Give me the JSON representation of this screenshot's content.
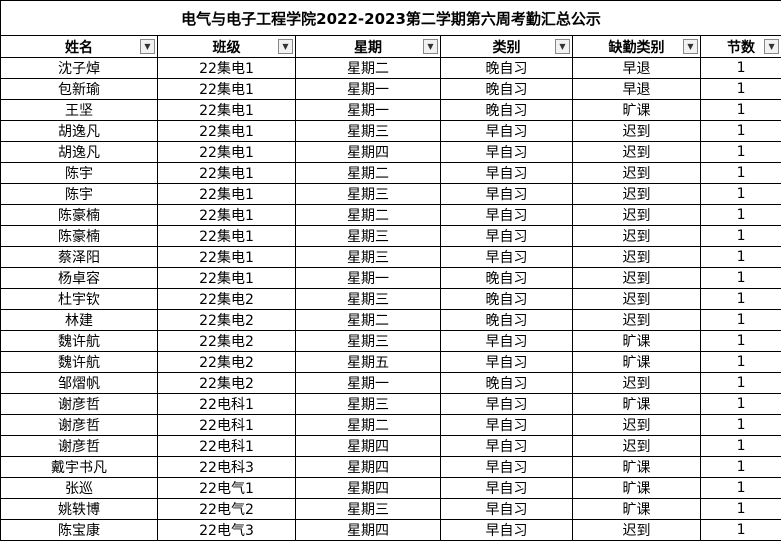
{
  "table": {
    "title": "电气与电子工程学院2022-2023第二学期第六周考勤汇总公示",
    "headers": [
      "姓名",
      "班级",
      "星期",
      "类别",
      "缺勤类别",
      "节数"
    ],
    "rows": [
      [
        "沈子焯",
        "22集电1",
        "星期二",
        "晚自习",
        "早退",
        1
      ],
      [
        "包新瑜",
        "22集电1",
        "星期一",
        "晚自习",
        "早退",
        1
      ],
      [
        "王坚",
        "22集电1",
        "星期一",
        "晚自习",
        "旷课",
        1
      ],
      [
        "胡逸凡",
        "22集电1",
        "星期三",
        "早自习",
        "迟到",
        1
      ],
      [
        "胡逸凡",
        "22集电1",
        "星期四",
        "早自习",
        "迟到",
        1
      ],
      [
        "陈宇",
        "22集电1",
        "星期二",
        "早自习",
        "迟到",
        1
      ],
      [
        "陈宇",
        "22集电1",
        "星期三",
        "早自习",
        "迟到",
        1
      ],
      [
        "陈豪楠",
        "22集电1",
        "星期二",
        "早自习",
        "迟到",
        1
      ],
      [
        "陈豪楠",
        "22集电1",
        "星期三",
        "早自习",
        "迟到",
        1
      ],
      [
        "蔡泽阳",
        "22集电1",
        "星期三",
        "早自习",
        "迟到",
        1
      ],
      [
        "杨卓容",
        "22集电1",
        "星期一",
        "晚自习",
        "迟到",
        1
      ],
      [
        "杜宇钦",
        "22集电2",
        "星期三",
        "晚自习",
        "迟到",
        1
      ],
      [
        "林建",
        "22集电2",
        "星期二",
        "晚自习",
        "迟到",
        1
      ],
      [
        "魏许航",
        "22集电2",
        "星期三",
        "早自习",
        "旷课",
        1
      ],
      [
        "魏许航",
        "22集电2",
        "星期五",
        "早自习",
        "旷课",
        1
      ],
      [
        "邹熠帆",
        "22集电2",
        "星期一",
        "晚自习",
        "迟到",
        1
      ],
      [
        "谢彦哲",
        "22电科1",
        "星期三",
        "早自习",
        "旷课",
        1
      ],
      [
        "谢彦哲",
        "22电科1",
        "星期二",
        "早自习",
        "迟到",
        1
      ],
      [
        "谢彦哲",
        "22电科1",
        "星期四",
        "早自习",
        "迟到",
        1
      ],
      [
        "戴宇书凡",
        "22电科3",
        "星期四",
        "早自习",
        "旷课",
        1
      ],
      [
        "张巡",
        "22电气1",
        "星期四",
        "早自习",
        "旷课",
        1
      ],
      [
        "姚轶博",
        "22电气2",
        "星期三",
        "早自习",
        "旷课",
        1
      ],
      [
        "陈宝康",
        "22电气3",
        "星期四",
        "早自习",
        "迟到",
        1
      ]
    ]
  }
}
